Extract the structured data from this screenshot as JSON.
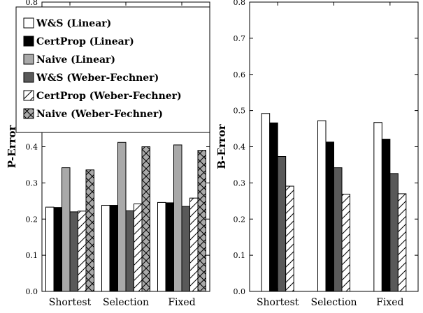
{
  "legend": {
    "entries": [
      {
        "label": "W&S (Linear)",
        "style": "white"
      },
      {
        "label": "CertProp (Linear)",
        "style": "black"
      },
      {
        "label": "Naive (Linear)",
        "style": "lightgray"
      },
      {
        "label": "W&S (Weber-Fechner)",
        "style": "darkgray"
      },
      {
        "label": "CertProp (Weber-Fechner)",
        "style": "diag"
      },
      {
        "label": "Naive (Weber-Fechner)",
        "style": "crossgray"
      }
    ]
  },
  "styles": {
    "white": {
      "fill": "#ffffff"
    },
    "black": {
      "fill": "#000000"
    },
    "lightgray": {
      "fill": "#a9a9a9"
    },
    "darkgray": {
      "fill": "#595959"
    },
    "diag": {
      "fill": "#ffffff",
      "hatch": "diagonal"
    },
    "crossgray": {
      "fill": "#a9a9a9",
      "hatch": "cross"
    }
  },
  "chart_data": [
    {
      "type": "bar",
      "ylabel": "P-Error",
      "ylim": [
        0,
        0.8
      ],
      "yticks": [
        "0.0",
        "0.1",
        "0.2",
        "0.3",
        "0.4",
        "0.5",
        "0.6",
        "0.7",
        "0.8"
      ],
      "categories": [
        "Shortest",
        "Selection",
        "Fixed"
      ],
      "series": [
        {
          "name": "W&S (Linear)",
          "style": "white",
          "values": [
            0.233,
            0.238,
            0.246
          ]
        },
        {
          "name": "CertProp (Linear)",
          "style": "black",
          "values": [
            0.232,
            0.238,
            0.245
          ]
        },
        {
          "name": "Naive (Linear)",
          "style": "lightgray",
          "values": [
            0.342,
            0.412,
            0.405
          ]
        },
        {
          "name": "W&S (Weber-Fechner)",
          "style": "darkgray",
          "values": [
            0.22,
            0.223,
            0.235
          ]
        },
        {
          "name": "CertProp (Weber-Fechner)",
          "style": "diag",
          "values": [
            0.222,
            0.242,
            0.258
          ]
        },
        {
          "name": "Naive (Weber-Fechner)",
          "style": "crossgray",
          "values": [
            0.336,
            0.4,
            0.39
          ]
        }
      ]
    },
    {
      "type": "bar",
      "ylabel": "B-Error",
      "ylim": [
        0,
        0.8
      ],
      "yticks": [
        "0.0",
        "0.1",
        "0.2",
        "0.3",
        "0.4",
        "0.5",
        "0.6",
        "0.7",
        "0.8"
      ],
      "categories": [
        "Shortest",
        "Selection",
        "Fixed"
      ],
      "series": [
        {
          "name": "W&S (Linear)",
          "style": "white",
          "values": [
            0.492,
            0.472,
            0.467
          ]
        },
        {
          "name": "CertProp (Linear)",
          "style": "black",
          "values": [
            0.466,
            0.413,
            0.421
          ]
        },
        {
          "name": "W&S (Weber-Fechner)",
          "style": "darkgray",
          "values": [
            0.373,
            0.342,
            0.326
          ]
        },
        {
          "name": "CertProp (Weber-Fechner)",
          "style": "diag",
          "values": [
            0.291,
            0.269,
            0.27
          ]
        }
      ]
    }
  ]
}
